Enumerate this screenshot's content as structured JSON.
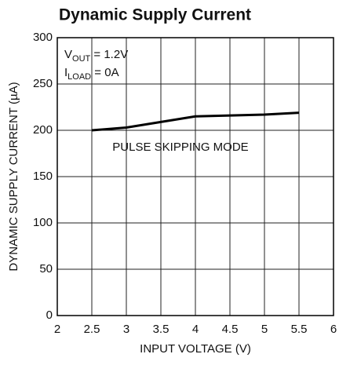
{
  "chart_data": {
    "type": "line",
    "title": "Dynamic Supply Current",
    "x_label": "INPUT VOLTAGE (V)",
    "y_label": "DYNAMIC SUPPLY CURRENT (µA)",
    "annotations": [
      {
        "main": "V",
        "sub": "OUT",
        "after": " = 1.2V"
      },
      {
        "main": "I",
        "sub": "LOAD",
        "after": " = 0A"
      }
    ],
    "series_label": "PULSE SKIPPING MODE",
    "x": [
      2.5,
      3,
      3.5,
      4,
      4.5,
      5,
      5.5
    ],
    "series": [
      {
        "color": "#000000",
        "values": [
          200,
          203,
          209,
          215,
          216,
          217,
          219
        ]
      }
    ],
    "xlim": [
      2,
      6
    ],
    "xticks": [
      2,
      2.5,
      3,
      3.5,
      4,
      4.5,
      5,
      5.5,
      6
    ],
    "ylim": [
      0,
      300
    ],
    "yticks": [
      0,
      50,
      100,
      150,
      200,
      250,
      300
    ],
    "grid": true
  }
}
